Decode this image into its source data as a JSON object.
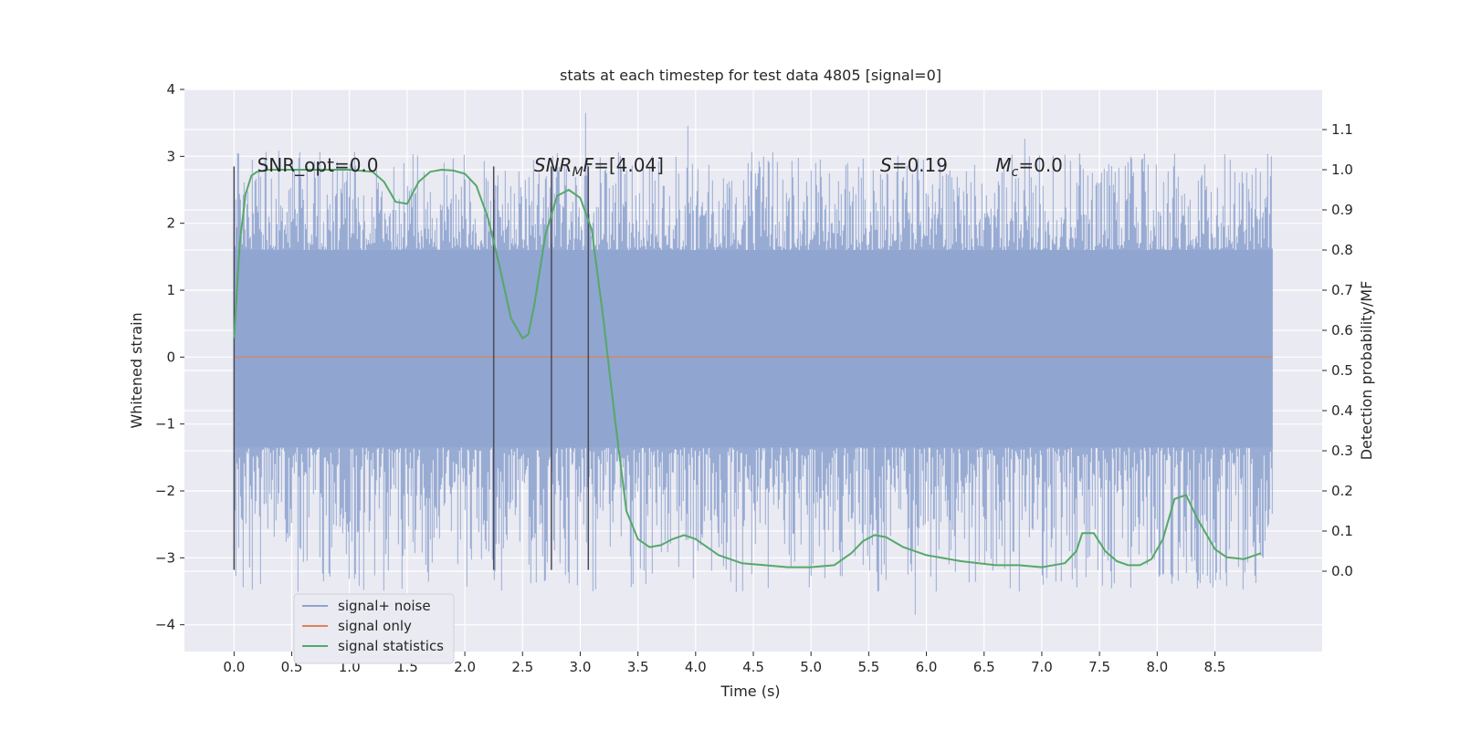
{
  "chart_data": {
    "type": "line",
    "title": "stats at each timestep for test data 4805 [signal=0]",
    "xlabel": "Time (s)",
    "ylabel_left": "Whitened strain",
    "ylabel_right": "Detection probability/MF",
    "xlim": [
      -0.43,
      9.43
    ],
    "ylim_left": [
      -4.4,
      4.0
    ],
    "ylim_right": [
      -0.2,
      1.2
    ],
    "x_ticks": [
      0.0,
      0.5,
      1.0,
      1.5,
      2.0,
      2.5,
      3.0,
      3.5,
      4.0,
      4.5,
      5.0,
      5.5,
      6.0,
      6.5,
      7.0,
      7.5,
      8.0,
      8.5
    ],
    "x_tick_labels": [
      "0.0",
      "0.5",
      "1.0",
      "1.5",
      "2.0",
      "2.5",
      "3.0",
      "3.5",
      "4.0",
      "4.5",
      "5.0",
      "5.5",
      "6.0",
      "6.5",
      "7.0",
      "7.5",
      "8.0",
      "8.5"
    ],
    "y_left_ticks": [
      -4,
      -3,
      -2,
      -1,
      0,
      1,
      2,
      3,
      4
    ],
    "y_left_tick_labels": [
      "−4",
      "−3",
      "−2",
      "−1",
      "0",
      "1",
      "2",
      "3",
      "4"
    ],
    "y_right_ticks": [
      0.0,
      0.1,
      0.2,
      0.3,
      0.4,
      0.5,
      0.6,
      0.7,
      0.8,
      0.9,
      1.0,
      1.1
    ],
    "y_right_tick_labels": [
      "0.0",
      "0.1",
      "0.2",
      "0.3",
      "0.4",
      "0.5",
      "0.6",
      "0.7",
      "0.8",
      "0.9",
      "1.0",
      "1.1"
    ],
    "annotations": [
      {
        "label": "SNR_opt",
        "value": "=0.0",
        "x": 0.2,
        "y": 2.8,
        "italic": false
      },
      {
        "label": "SNR",
        "sub": "M",
        "suffix": "F",
        "value": "=[4.04]",
        "x": 2.6,
        "y": 2.8,
        "italic": true
      },
      {
        "label": "S",
        "value": "=0.19",
        "x": 5.6,
        "y": 2.8,
        "italic": true
      },
      {
        "label": "M",
        "sub": "c",
        "value": "=0.0",
        "x": 6.6,
        "y": 2.8,
        "italic": true
      }
    ],
    "vertical_markers": [
      0.0,
      2.25,
      2.75,
      3.07
    ],
    "marker_range": [
      -3.18,
      2.85
    ],
    "noise_summary": {
      "t_start": 0.0,
      "t_end": 9.0,
      "dense_band": [
        -1.35,
        1.6
      ],
      "typical_peak_range": [
        2.0,
        3.0
      ],
      "max_strain": 3.65,
      "min_strain": -3.85
    },
    "colors": {
      "noise": "#8fa4cf",
      "signal": "#dd8452",
      "stats": "#55a868",
      "marker": "#4a4a5a",
      "background": "#eaeaf2",
      "grid": "#ffffff"
    },
    "series": [
      {
        "name": "signal+ noise",
        "axis": "left",
        "color": "#8fa4cf"
      },
      {
        "name": "signal only",
        "axis": "left",
        "color": "#dd8452",
        "x": [
          0.0,
          9.0
        ],
        "y": [
          0.0,
          0.0
        ]
      },
      {
        "name": "signal statistics",
        "axis": "right",
        "color": "#55a868",
        "x": [
          0.0,
          0.05,
          0.1,
          0.15,
          0.2,
          0.3,
          0.5,
          0.8,
          1.0,
          1.2,
          1.3,
          1.4,
          1.5,
          1.6,
          1.7,
          1.8,
          1.9,
          2.0,
          2.1,
          2.2,
          2.3,
          2.4,
          2.5,
          2.55,
          2.6,
          2.7,
          2.8,
          2.9,
          3.0,
          3.1,
          3.2,
          3.3,
          3.4,
          3.5,
          3.6,
          3.7,
          3.8,
          3.9,
          4.0,
          4.2,
          4.4,
          4.6,
          4.8,
          5.0,
          5.2,
          5.35,
          5.45,
          5.55,
          5.65,
          5.8,
          6.0,
          6.3,
          6.6,
          6.8,
          7.0,
          7.2,
          7.3,
          7.35,
          7.45,
          7.55,
          7.65,
          7.75,
          7.85,
          7.95,
          8.05,
          8.15,
          8.25,
          8.35,
          8.5,
          8.6,
          8.75,
          8.9
        ],
        "y": [
          0.58,
          0.82,
          0.94,
          0.985,
          0.995,
          1.0,
          1.0,
          1.0,
          1.0,
          0.995,
          0.97,
          0.92,
          0.915,
          0.97,
          0.995,
          1.0,
          0.998,
          0.99,
          0.96,
          0.88,
          0.76,
          0.63,
          0.58,
          0.59,
          0.66,
          0.84,
          0.935,
          0.95,
          0.93,
          0.85,
          0.63,
          0.38,
          0.15,
          0.08,
          0.06,
          0.065,
          0.08,
          0.09,
          0.08,
          0.04,
          0.02,
          0.015,
          0.01,
          0.01,
          0.015,
          0.045,
          0.075,
          0.09,
          0.085,
          0.06,
          0.04,
          0.025,
          0.015,
          0.015,
          0.01,
          0.02,
          0.05,
          0.095,
          0.095,
          0.05,
          0.025,
          0.015,
          0.015,
          0.03,
          0.08,
          0.18,
          0.19,
          0.13,
          0.055,
          0.035,
          0.03,
          0.045
        ]
      }
    ],
    "legend": {
      "position": "lower-left",
      "entries": [
        "signal+ noise",
        "signal only",
        "signal statistics"
      ]
    }
  }
}
